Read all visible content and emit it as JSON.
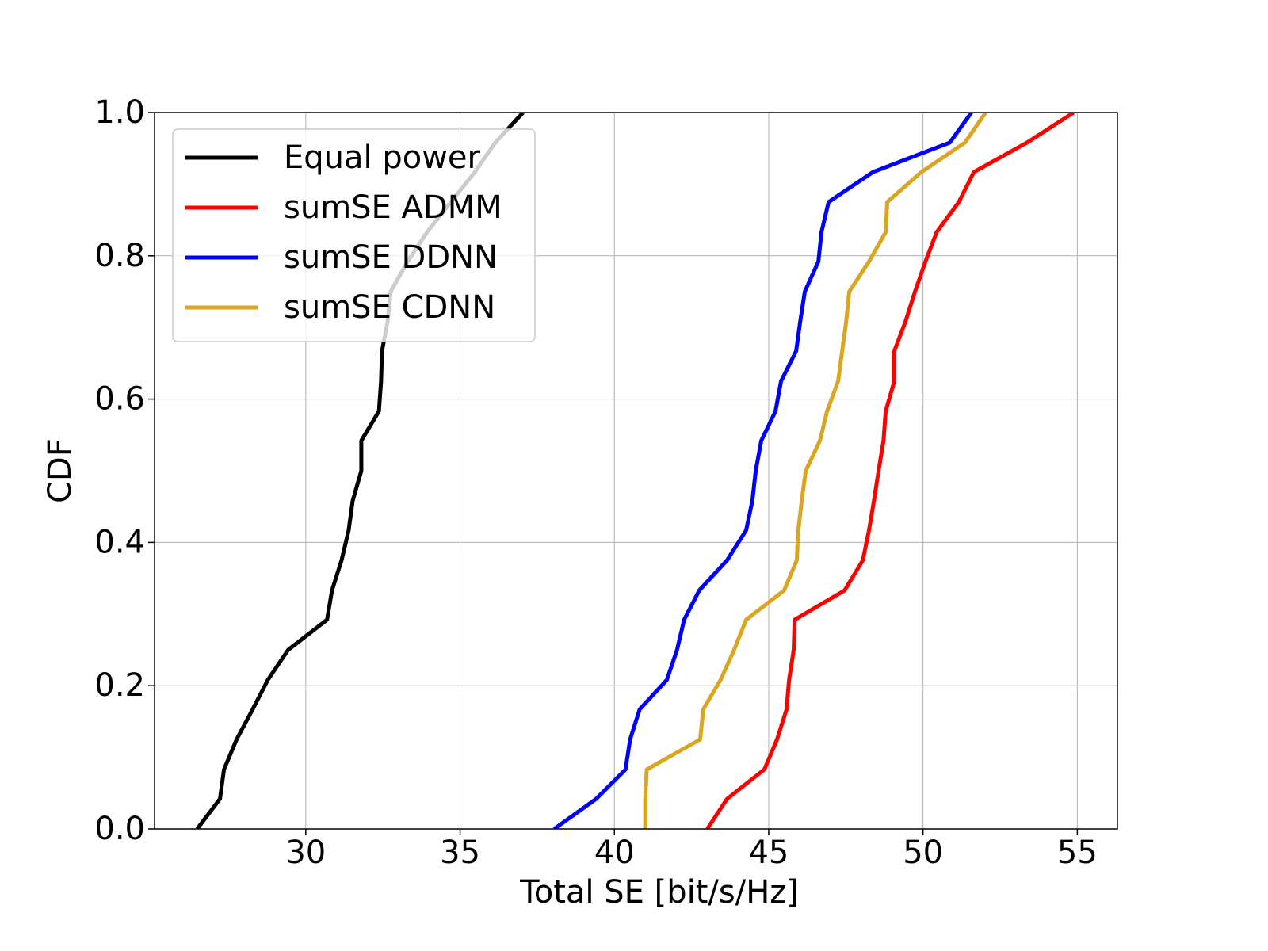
{
  "chart_data": {
    "type": "line",
    "xlabel": "Total SE [bit/s/Hz]",
    "ylabel": "CDF",
    "xlim": [
      25.1,
      56.3
    ],
    "ylim": [
      0,
      1
    ],
    "xticks": [
      30,
      35,
      40,
      45,
      50,
      55
    ],
    "yticks": [
      {
        "value": 0,
        "label": "0.0"
      },
      0.2,
      0.4,
      0.6,
      0.8,
      {
        "value": 1,
        "label": "1.0"
      }
    ],
    "grid": true,
    "legend": "upper left",
    "series": [
      {
        "name": "Equal power",
        "color": "#000000",
        "x": [
          26.48,
          27.22,
          27.35,
          27.76,
          28.28,
          28.77,
          29.43,
          30.69,
          30.85,
          31.16,
          31.39,
          31.52,
          31.8,
          31.8,
          32.37,
          32.44,
          32.47,
          32.65,
          32.75,
          33.3,
          33.93,
          34.7,
          35.48,
          36.14,
          37.04
        ],
        "values": [
          0,
          0.042,
          0.083,
          0.125,
          0.167,
          0.208,
          0.25,
          0.292,
          0.333,
          0.375,
          0.417,
          0.458,
          0.5,
          0.542,
          0.583,
          0.625,
          0.667,
          0.708,
          0.75,
          0.792,
          0.833,
          0.875,
          0.917,
          0.958,
          1
        ]
      },
      {
        "name": "sumSE ADMM",
        "color": "#ff0000",
        "x": [
          43.01,
          43.65,
          44.86,
          45.27,
          45.58,
          45.66,
          45.81,
          45.84,
          47.46,
          48.05,
          48.25,
          48.41,
          48.56,
          48.72,
          48.79,
          49.07,
          49.07,
          49.43,
          49.74,
          50.08,
          50.44,
          51.16,
          51.65,
          53.37,
          54.88
        ],
        "values": [
          0,
          0.042,
          0.083,
          0.125,
          0.167,
          0.208,
          0.25,
          0.292,
          0.333,
          0.375,
          0.417,
          0.458,
          0.5,
          0.542,
          0.583,
          0.625,
          0.667,
          0.708,
          0.75,
          0.792,
          0.833,
          0.875,
          0.917,
          0.958,
          1
        ]
      },
      {
        "name": "sumSE DDNN",
        "color": "#0000ff",
        "x": [
          38.05,
          39.41,
          40.36,
          40.51,
          40.82,
          41.7,
          42.03,
          42.26,
          42.75,
          43.65,
          44.27,
          44.47,
          44.58,
          44.76,
          45.22,
          45.4,
          45.89,
          46.02,
          46.17,
          46.61,
          46.71,
          46.94,
          48.38,
          50.87,
          51.57
        ],
        "values": [
          0,
          0.042,
          0.083,
          0.125,
          0.167,
          0.208,
          0.25,
          0.292,
          0.333,
          0.375,
          0.417,
          0.458,
          0.5,
          0.542,
          0.583,
          0.625,
          0.667,
          0.708,
          0.75,
          0.792,
          0.833,
          0.875,
          0.917,
          0.958,
          1
        ]
      },
      {
        "name": "sumSE CDNN",
        "color": "#daa520",
        "x": [
          41.0,
          41.0,
          41.05,
          42.78,
          42.88,
          43.44,
          43.88,
          44.27,
          45.5,
          45.91,
          45.96,
          46.07,
          46.2,
          46.66,
          46.89,
          47.25,
          47.38,
          47.51,
          47.61,
          48.25,
          48.79,
          48.84,
          49.95,
          51.36,
          52.03
        ],
        "values": [
          0,
          0.042,
          0.083,
          0.125,
          0.167,
          0.208,
          0.25,
          0.292,
          0.333,
          0.375,
          0.417,
          0.458,
          0.5,
          0.542,
          0.583,
          0.625,
          0.667,
          0.708,
          0.75,
          0.792,
          0.833,
          0.875,
          0.917,
          0.958,
          1
        ]
      }
    ]
  }
}
